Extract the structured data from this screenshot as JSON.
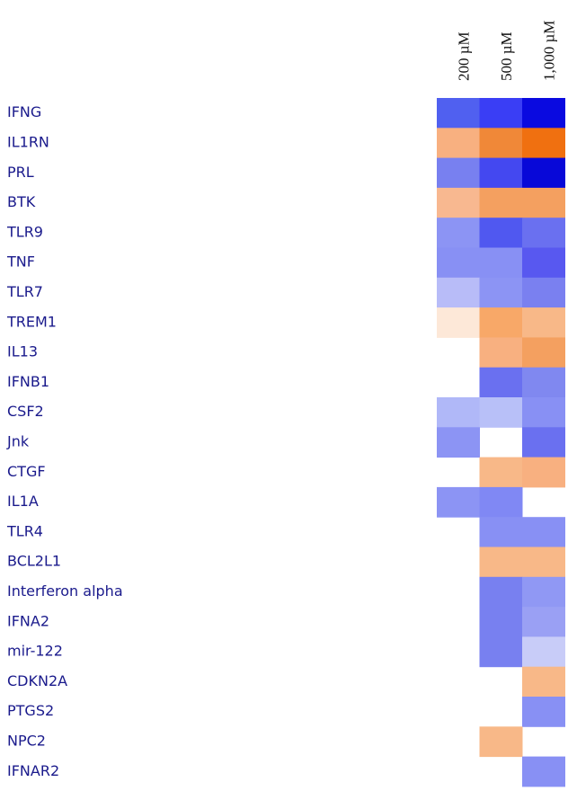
{
  "chart_data": {
    "type": "heatmap",
    "columns": [
      "200 µM",
      "500 µM",
      "1,000 µM"
    ],
    "rows": [
      "IFNG",
      "IL1RN",
      "PRL",
      "BTK",
      "TLR9",
      "TNF",
      "TLR7",
      "TREM1",
      "IL13",
      "IFNB1",
      "CSF2",
      "Jnk",
      "CTGF",
      "IL1A",
      "TLR4",
      "BCL2L1",
      "Interferon alpha",
      "IFNA2",
      "mir-122",
      "CDKN2A",
      "PTGS2",
      "NPC2",
      "IFNAR2"
    ],
    "cell_colors": [
      [
        "#5060f0",
        "#3a3ef5",
        "#0a0ae0"
      ],
      [
        "#f8b080",
        "#f08838",
        "#f07010"
      ],
      [
        "#7880f0",
        "#4448f0",
        "#0808d8"
      ],
      [
        "#f8b890",
        "#f4a060",
        "#f4a060"
      ],
      [
        "#8c94f4",
        "#5058f0",
        "#6a70f0"
      ],
      [
        "#8890f4",
        "#8890f4",
        "#5858f0"
      ],
      [
        "#b8bcf8",
        "#8c94f4",
        "#7a80f0"
      ],
      [
        "#fde8d8",
        "#f8a868",
        "#f8b888"
      ],
      [
        null,
        "#f8b080",
        "#f4a060"
      ],
      [
        null,
        "#6a70f0",
        "#8088f0"
      ],
      [
        "#b0b8f8",
        "#b8c0f8",
        "#8890f4"
      ],
      [
        "#8c94f4",
        null,
        "#6a70f0"
      ],
      [
        null,
        "#f8b888",
        "#f8b080"
      ],
      [
        "#8c94f4",
        "#8088f4",
        null
      ],
      [
        null,
        "#8890f4",
        "#8890f4"
      ],
      [
        null,
        "#f8b888",
        "#f8b888"
      ],
      [
        null,
        "#7880f0",
        "#9098f4"
      ],
      [
        null,
        "#7880f0",
        "#9aa0f4"
      ],
      [
        null,
        "#7880f0",
        "#c8ccf8"
      ],
      [
        null,
        null,
        "#f8b888"
      ],
      [
        null,
        null,
        "#8890f4"
      ],
      [
        null,
        "#f8b888",
        null
      ],
      [
        null,
        null,
        "#8890f4"
      ]
    ]
  }
}
